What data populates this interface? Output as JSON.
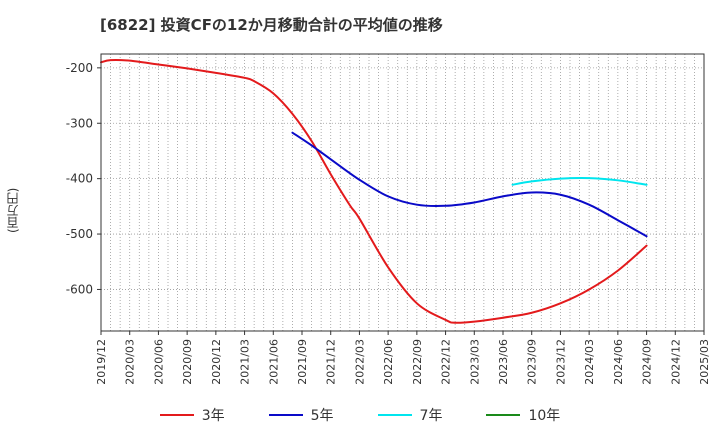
{
  "chart_data": {
    "type": "line",
    "title": "[6822]  投資CFの12か月移動合計の平均値の推移",
    "ylabel": "(百万円)",
    "xlabel": "",
    "ylim": [
      -675,
      -175
    ],
    "yticks": [
      -200,
      -300,
      -400,
      -500,
      -600
    ],
    "xticks": [
      "2019/12",
      "2020/03",
      "2020/06",
      "2020/09",
      "2020/12",
      "2021/03",
      "2021/06",
      "2021/09",
      "2021/12",
      "2022/03",
      "2022/06",
      "2022/09",
      "2022/12",
      "2023/03",
      "2023/06",
      "2023/09",
      "2023/12",
      "2024/03",
      "2024/06",
      "2024/09",
      "2024/12",
      "2025/03"
    ],
    "grid": true,
    "legend_position": "bottom",
    "series": [
      {
        "name": "3年",
        "color": "#e31a1c",
        "x": [
          "2019/12",
          "2020/01",
          "2020/03",
          "2020/06",
          "2020/09",
          "2020/12",
          "2021/03",
          "2021/04",
          "2021/06",
          "2021/08",
          "2021/10",
          "2021/12",
          "2022/02",
          "2022/03",
          "2022/06",
          "2022/09",
          "2022/12",
          "2023/01",
          "2023/03",
          "2023/06",
          "2023/09",
          "2023/12",
          "2024/03",
          "2024/06",
          "2024/09"
        ],
        "values": [
          -190,
          -186,
          -187,
          -194,
          -201,
          -209,
          -218,
          -224,
          -246,
          -283,
          -332,
          -392,
          -448,
          -472,
          -560,
          -625,
          -655,
          -660,
          -658,
          -651,
          -642,
          -625,
          -600,
          -566,
          -521
        ]
      },
      {
        "name": "5年",
        "color": "#0a0ac8",
        "x": [
          "2021/08",
          "2021/10",
          "2021/12",
          "2022/03",
          "2022/06",
          "2022/09",
          "2022/12",
          "2023/03",
          "2023/06",
          "2023/09",
          "2023/12",
          "2024/03",
          "2024/06",
          "2024/09"
        ],
        "values": [
          -317,
          -340,
          -365,
          -402,
          -432,
          -447,
          -449,
          -443,
          -432,
          -425,
          -429,
          -447,
          -475,
          -504
        ]
      },
      {
        "name": "7年",
        "color": "#00e5ee",
        "x": [
          "2023/07",
          "2023/09",
          "2023/12",
          "2024/03",
          "2024/06",
          "2024/09"
        ],
        "values": [
          -411,
          -405,
          -400,
          -399,
          -403,
          -411
        ]
      },
      {
        "name": "10年",
        "color": "#1a8a1a",
        "x": [],
        "values": []
      }
    ]
  }
}
